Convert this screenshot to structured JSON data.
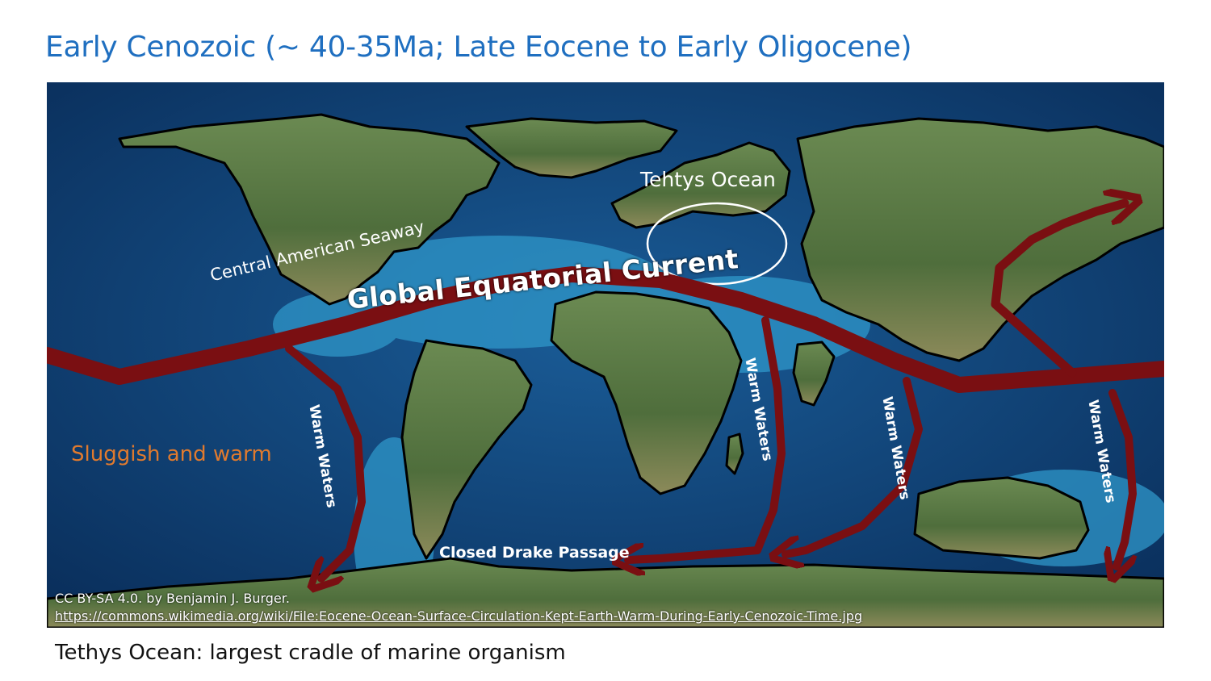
{
  "page_title": "Early Cenozoic (~ 40-35Ma; Late Eocene to Early Oligocene)",
  "map": {
    "labels": {
      "tethys": "Tehtys Ocean",
      "seaway": "Central American Seaway",
      "current": "Global Equatorial  Current",
      "sluggish": "Sluggish and warm",
      "warm_waters": "Warm Waters",
      "drake": "Closed Drake Passage"
    },
    "credit_line": "CC BY-SA 4.0. by Benjamin J. Burger.",
    "credit_url": "https://commons.wikimedia.org/wiki/File:Eocene-Ocean-Surface-Circulation-Kept-Earth-Warm-During-Early-Cenozoic-Time.jpg"
  },
  "caption": "Tethys Ocean: largest cradle of marine organism",
  "colors": {
    "title": "#1f6fc0",
    "current_arrows": "#7a0f12",
    "ocean_deep": "#0b3a6e",
    "ocean_shallow": "#36a9d6",
    "land": "#5d7a45",
    "sluggish_text": "#e07a2e"
  }
}
